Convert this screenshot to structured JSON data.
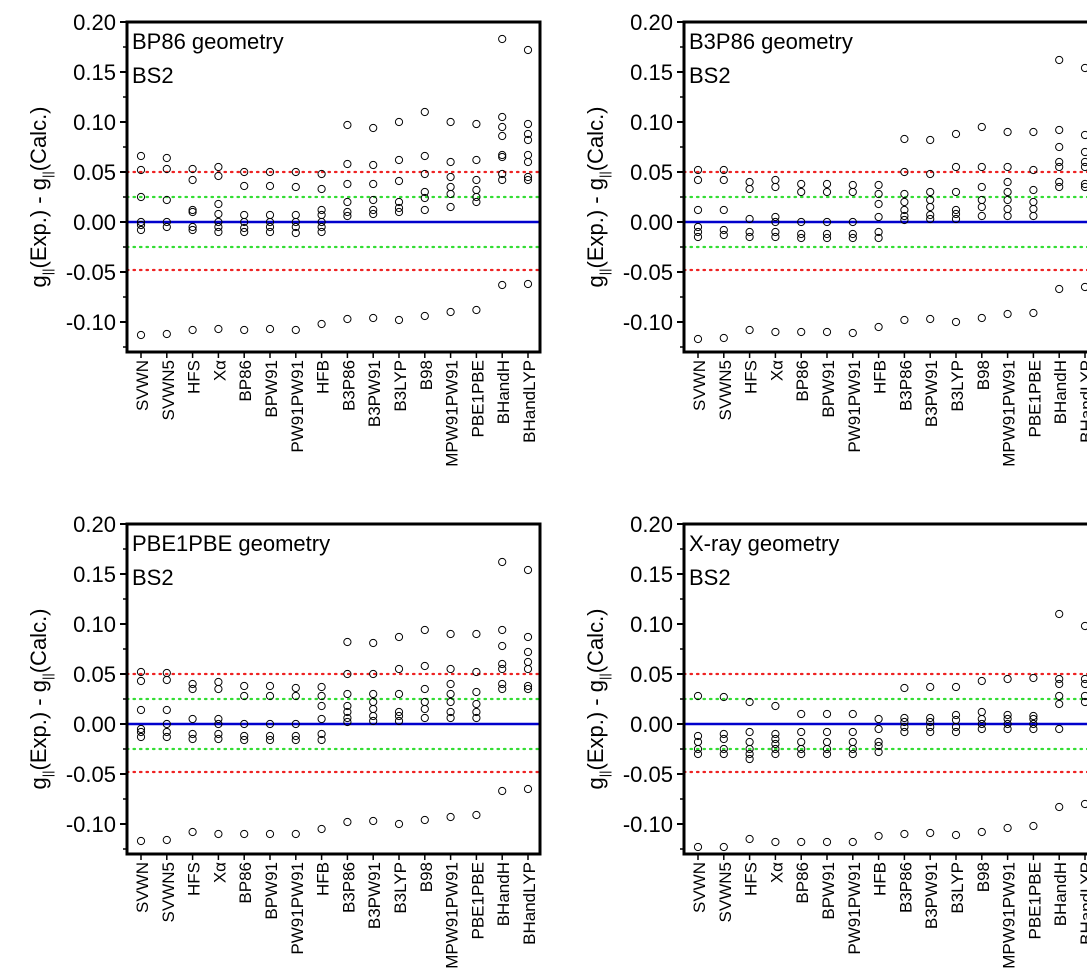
{
  "chart_data": [
    {
      "type": "scatter",
      "title": "BP86 geometry",
      "subtitle": "BS2",
      "ylabel_main": "g",
      "ylabel_sub": "||",
      "ylabel_rest_1": "(Exp.) - g",
      "ylabel_rest_2": "(Calc.)",
      "ylim": [
        -0.13,
        0.2
      ],
      "yticks": [
        "-0.10",
        "-0.05",
        "0.00",
        "0.05",
        "0.10",
        "0.15",
        "0.20"
      ],
      "categories": [
        "SVWN",
        "SVWN5",
        "HFS",
        "Xα",
        "BP86",
        "BPW91",
        "PW91PW91",
        "HFB",
        "B3P86",
        "B3PW91",
        "B3LYP",
        "B98",
        "MPW91PW91",
        "PBE1PBE",
        "BHandH",
        "BHandLYP"
      ],
      "reference_lines": [
        {
          "y": 0.0,
          "color": "#0000cc",
          "style": "solid"
        },
        {
          "y": 0.025,
          "color": "#33dd33",
          "style": "dotted"
        },
        {
          "y": -0.025,
          "color": "#33dd33",
          "style": "dotted"
        },
        {
          "y": 0.05,
          "color": "#ee2222",
          "style": "dotted"
        },
        {
          "y": -0.048,
          "color": "#ee2222",
          "style": "dotted"
        }
      ],
      "points": [
        [
          -0.113,
          -0.008,
          -0.003,
          0.0,
          0.025,
          0.052,
          0.066
        ],
        [
          -0.112,
          -0.005,
          0.0,
          0.022,
          0.053,
          0.064
        ],
        [
          -0.108,
          -0.008,
          -0.005,
          0.01,
          0.012,
          0.042,
          0.053
        ],
        [
          -0.107,
          -0.01,
          -0.005,
          0.0,
          0.008,
          0.018,
          0.046,
          0.055
        ],
        [
          -0.108,
          -0.01,
          -0.006,
          0.0,
          0.007,
          0.036,
          0.05
        ],
        [
          -0.107,
          -0.01,
          -0.005,
          0.0,
          0.007,
          0.036,
          0.05
        ],
        [
          -0.108,
          -0.011,
          -0.005,
          0.0,
          0.007,
          0.035,
          0.05
        ],
        [
          -0.102,
          -0.01,
          -0.005,
          0.0,
          0.007,
          0.012,
          0.033,
          0.048
        ],
        [
          -0.097,
          0.006,
          0.01,
          0.02,
          0.038,
          0.058,
          0.097
        ],
        [
          -0.096,
          0.008,
          0.012,
          0.022,
          0.038,
          0.057,
          0.094
        ],
        [
          -0.098,
          0.01,
          0.014,
          0.02,
          0.041,
          0.062,
          0.1
        ],
        [
          -0.094,
          0.012,
          0.024,
          0.03,
          0.048,
          0.066,
          0.11
        ],
        [
          -0.09,
          0.015,
          0.028,
          0.035,
          0.045,
          0.06,
          0.1
        ],
        [
          -0.088,
          0.02,
          0.025,
          0.032,
          0.042,
          0.062,
          0.098
        ],
        [
          -0.063,
          0.042,
          0.048,
          0.065,
          0.067,
          0.086,
          0.095,
          0.105,
          0.183
        ],
        [
          -0.062,
          0.042,
          0.045,
          0.06,
          0.067,
          0.082,
          0.088,
          0.098,
          0.172
        ]
      ]
    },
    {
      "type": "scatter",
      "title": "B3P86 geometry",
      "subtitle": "BS2",
      "ylabel_main": "g",
      "ylabel_sub": "||",
      "ylabel_rest_1": "(Exp.) - g",
      "ylabel_rest_2": "(Calc.)",
      "ylim": [
        -0.13,
        0.2
      ],
      "yticks": [
        "-0.10",
        "-0.05",
        "0.00",
        "0.05",
        "0.10",
        "0.15",
        "0.20"
      ],
      "categories": [
        "SVWN",
        "SVWN5",
        "HFS",
        "Xα",
        "BP86",
        "BPW91",
        "PW91PW91",
        "HFB",
        "B3P86",
        "B3PW91",
        "B3LYP",
        "B98",
        "MPW91PW91",
        "PBE1PBE",
        "BHandH",
        "BHandLYP"
      ],
      "reference_lines": [
        {
          "y": 0.0,
          "color": "#0000cc",
          "style": "solid"
        },
        {
          "y": 0.025,
          "color": "#33dd33",
          "style": "dotted"
        },
        {
          "y": -0.025,
          "color": "#33dd33",
          "style": "dotted"
        },
        {
          "y": 0.05,
          "color": "#ee2222",
          "style": "dotted"
        },
        {
          "y": -0.048,
          "color": "#ee2222",
          "style": "dotted"
        }
      ],
      "points": [
        [
          -0.117,
          -0.015,
          -0.01,
          -0.005,
          0.012,
          0.042,
          0.052
        ],
        [
          -0.116,
          -0.013,
          -0.008,
          0.012,
          0.042,
          0.052
        ],
        [
          -0.108,
          -0.015,
          -0.01,
          0.003,
          0.033,
          0.04
        ],
        [
          -0.11,
          -0.015,
          -0.01,
          0.0,
          0.005,
          0.035,
          0.042
        ],
        [
          -0.11,
          -0.016,
          -0.012,
          0.0,
          0.03,
          0.038
        ],
        [
          -0.11,
          -0.016,
          -0.012,
          0.0,
          0.03,
          0.038
        ],
        [
          -0.111,
          -0.016,
          -0.012,
          0.0,
          0.03,
          0.037
        ],
        [
          -0.105,
          -0.016,
          -0.01,
          0.005,
          0.018,
          0.028,
          0.037
        ],
        [
          -0.098,
          0.002,
          0.006,
          0.012,
          0.02,
          0.028,
          0.05,
          0.083
        ],
        [
          -0.097,
          0.003,
          0.007,
          0.015,
          0.022,
          0.03,
          0.048,
          0.082
        ],
        [
          -0.1,
          0.003,
          0.008,
          0.012,
          0.03,
          0.055,
          0.088
        ],
        [
          -0.096,
          0.006,
          0.015,
          0.022,
          0.035,
          0.055,
          0.095
        ],
        [
          -0.092,
          0.006,
          0.013,
          0.022,
          0.03,
          0.04,
          0.055,
          0.09
        ],
        [
          -0.091,
          0.006,
          0.013,
          0.02,
          0.032,
          0.052,
          0.09
        ],
        [
          -0.067,
          0.035,
          0.04,
          0.055,
          0.06,
          0.075,
          0.092,
          0.162
        ],
        [
          -0.065,
          0.035,
          0.038,
          0.055,
          0.06,
          0.07,
          0.087,
          0.154
        ]
      ]
    },
    {
      "type": "scatter",
      "title": "PBE1PBE geometry",
      "subtitle": "BS2",
      "ylabel_main": "g",
      "ylabel_sub": "||",
      "ylabel_rest_1": "(Exp.) - g",
      "ylabel_rest_2": "(Calc.)",
      "ylim": [
        -0.13,
        0.2
      ],
      "yticks": [
        "-0.10",
        "-0.05",
        "0.00",
        "0.05",
        "0.10",
        "0.15",
        "0.20"
      ],
      "categories": [
        "SVWN",
        "SVWN5",
        "HFS",
        "Xα",
        "BP86",
        "BPW91",
        "PW91PW91",
        "HFB",
        "B3P86",
        "B3PW91",
        "B3LYP",
        "B98",
        "MPW91PW91",
        "PBE1PBE",
        "BHandH",
        "BHandLYP"
      ],
      "reference_lines": [
        {
          "y": 0.0,
          "color": "#0000cc",
          "style": "solid"
        },
        {
          "y": 0.025,
          "color": "#33dd33",
          "style": "dotted"
        },
        {
          "y": -0.025,
          "color": "#33dd33",
          "style": "dotted"
        },
        {
          "y": 0.05,
          "color": "#ee2222",
          "style": "dotted"
        },
        {
          "y": -0.048,
          "color": "#ee2222",
          "style": "dotted"
        }
      ],
      "points": [
        [
          -0.117,
          -0.013,
          -0.008,
          -0.005,
          0.014,
          0.043,
          0.052
        ],
        [
          -0.116,
          -0.013,
          -0.008,
          0.0,
          0.014,
          0.044,
          0.051
        ],
        [
          -0.108,
          -0.015,
          -0.01,
          0.005,
          0.035,
          0.04
        ],
        [
          -0.11,
          -0.015,
          -0.01,
          0.0,
          0.005,
          0.035,
          0.042
        ],
        [
          -0.11,
          -0.016,
          -0.012,
          0.0,
          0.028,
          0.038
        ],
        [
          -0.11,
          -0.016,
          -0.012,
          0.0,
          0.028,
          0.038
        ],
        [
          -0.11,
          -0.016,
          -0.012,
          0.0,
          0.028,
          0.036
        ],
        [
          -0.105,
          -0.016,
          -0.01,
          0.005,
          0.018,
          0.028,
          0.037
        ],
        [
          -0.098,
          0.002,
          0.006,
          0.012,
          0.018,
          0.03,
          0.05,
          0.082
        ],
        [
          -0.097,
          0.003,
          0.008,
          0.015,
          0.022,
          0.03,
          0.05,
          0.081
        ],
        [
          -0.1,
          0.003,
          0.008,
          0.012,
          0.03,
          0.055,
          0.087
        ],
        [
          -0.096,
          0.006,
          0.015,
          0.022,
          0.035,
          0.058,
          0.094
        ],
        [
          -0.093,
          0.006,
          0.012,
          0.022,
          0.03,
          0.04,
          0.055,
          0.09
        ],
        [
          -0.091,
          0.006,
          0.012,
          0.02,
          0.032,
          0.052,
          0.09
        ],
        [
          -0.067,
          0.035,
          0.04,
          0.055,
          0.06,
          0.078,
          0.094,
          0.162
        ],
        [
          -0.065,
          0.035,
          0.038,
          0.055,
          0.062,
          0.072,
          0.087,
          0.154
        ]
      ]
    },
    {
      "type": "scatter",
      "title": "X-ray geometry",
      "subtitle": "BS2",
      "ylabel_main": "g",
      "ylabel_sub": "||",
      "ylabel_rest_1": "(Exp.) - g",
      "ylabel_rest_2": "(Calc.)",
      "ylim": [
        -0.13,
        0.2
      ],
      "yticks": [
        "-0.10",
        "-0.05",
        "0.00",
        "0.05",
        "0.10",
        "0.15",
        "0.20"
      ],
      "categories": [
        "SVWN",
        "SVWN5",
        "HFS",
        "Xα",
        "BP86",
        "BPW91",
        "PW91PW91",
        "HFB",
        "B3P86",
        "B3PW91",
        "B3LYP",
        "B98",
        "MPW91PW91",
        "PBE1PBE",
        "BHandH",
        "BHandLYP"
      ],
      "reference_lines": [
        {
          "y": 0.0,
          "color": "#0000cc",
          "style": "solid"
        },
        {
          "y": 0.025,
          "color": "#33dd33",
          "style": "dotted"
        },
        {
          "y": -0.025,
          "color": "#33dd33",
          "style": "dotted"
        },
        {
          "y": 0.05,
          "color": "#ee2222",
          "style": "dotted"
        },
        {
          "y": -0.048,
          "color": "#ee2222",
          "style": "dotted"
        }
      ],
      "points": [
        [
          -0.123,
          -0.03,
          -0.025,
          -0.018,
          -0.012,
          0.028
        ],
        [
          -0.123,
          -0.03,
          -0.025,
          -0.015,
          -0.01,
          0.027
        ],
        [
          -0.115,
          -0.035,
          -0.03,
          -0.025,
          -0.018,
          -0.008,
          0.022
        ],
        [
          -0.118,
          -0.03,
          -0.025,
          -0.02,
          -0.015,
          -0.01,
          0.018
        ],
        [
          -0.118,
          -0.03,
          -0.025,
          -0.018,
          -0.008,
          0.01
        ],
        [
          -0.118,
          -0.03,
          -0.025,
          -0.018,
          -0.008,
          0.01
        ],
        [
          -0.118,
          -0.03,
          -0.025,
          -0.018,
          -0.008,
          0.01
        ],
        [
          -0.112,
          -0.028,
          -0.022,
          -0.018,
          -0.005,
          0.005
        ],
        [
          -0.11,
          -0.008,
          -0.003,
          0.002,
          0.006,
          0.036
        ],
        [
          -0.109,
          -0.008,
          -0.003,
          0.002,
          0.006,
          0.037
        ],
        [
          -0.111,
          -0.008,
          -0.003,
          0.004,
          0.009,
          0.037
        ],
        [
          -0.108,
          -0.005,
          0.0,
          0.005,
          0.012,
          0.043
        ],
        [
          -0.104,
          -0.005,
          0.0,
          0.005,
          0.009,
          0.045
        ],
        [
          -0.102,
          -0.005,
          0.0,
          0.005,
          0.008,
          0.046
        ],
        [
          -0.083,
          -0.005,
          0.02,
          0.028,
          0.04,
          0.045,
          0.11
        ],
        [
          -0.08,
          0.022,
          0.028,
          0.04,
          0.045,
          0.098
        ]
      ]
    }
  ]
}
